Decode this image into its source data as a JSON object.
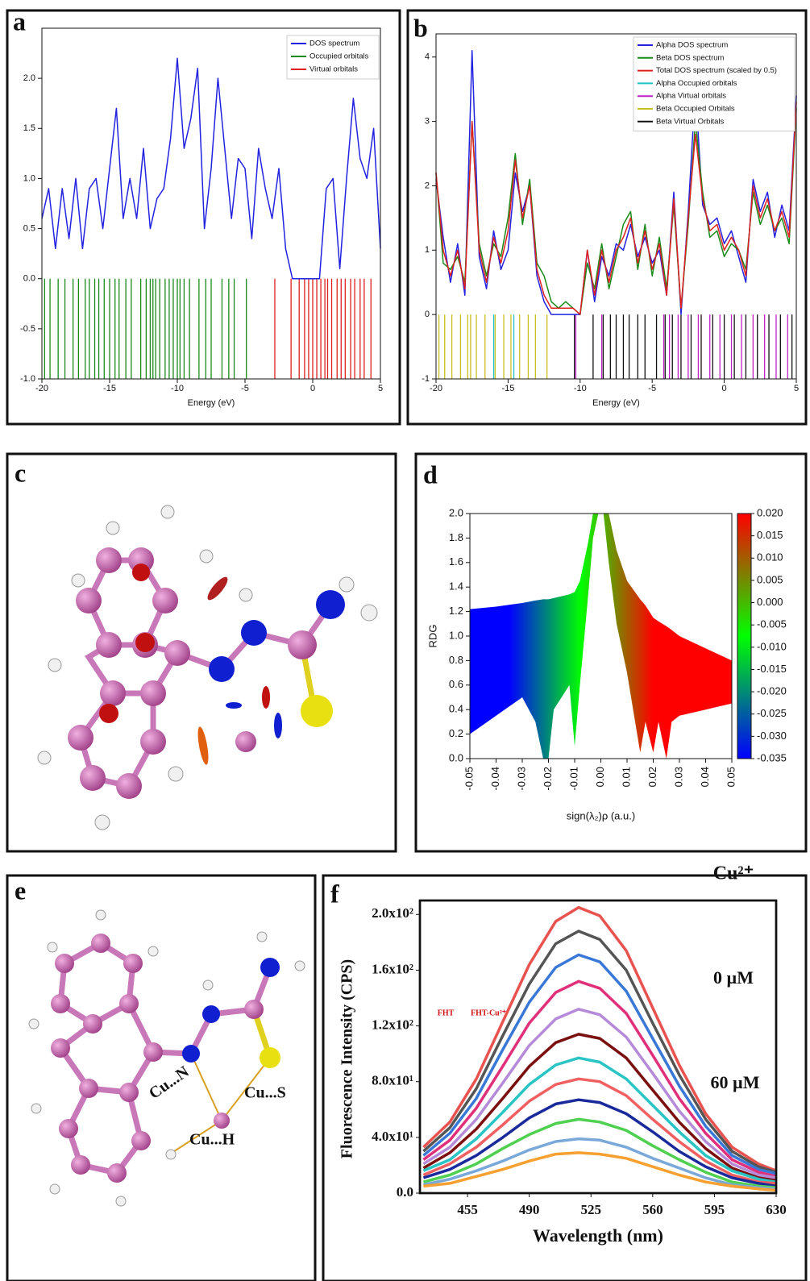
{
  "chart_data": [
    {
      "type": "line",
      "panel_label": "a",
      "xlabel": "Energy (eV)",
      "x": [
        -20,
        -19.5,
        -19,
        -18.5,
        -18,
        -17.5,
        -17,
        -16.5,
        -16,
        -15.5,
        -15,
        -14.5,
        -14,
        -13.5,
        -13,
        -12.5,
        -12,
        -11.5,
        -11,
        -10.5,
        -10,
        -9.5,
        -9,
        -8.5,
        -8,
        -7.5,
        -7,
        -6.5,
        -6,
        -5.5,
        -5,
        -4.5,
        -4,
        -3.5,
        -3,
        -2.5,
        -2,
        -1.5,
        -1,
        -0.5,
        0,
        0.5,
        1,
        1.5,
        2,
        2.5,
        3,
        3.5,
        4,
        4.5,
        5
      ],
      "xlim": [
        -20,
        5
      ],
      "xticks": [
        -20,
        -15,
        -10,
        -5,
        0,
        5
      ],
      "ylim": [
        -1,
        2.5
      ],
      "yticks": [
        {
          "value": -1,
          "label": "-1.0"
        },
        -0.5,
        {
          "value": 0,
          "label": "0.0"
        },
        0.5,
        {
          "value": 1,
          "label": "1.0"
        },
        1.5,
        {
          "value": 2,
          "label": "2.0"
        }
      ],
      "series": [
        {
          "name": "DOS spectrum",
          "color": "#2222e0",
          "values": [
            0.6,
            0.9,
            0.3,
            0.9,
            0.4,
            1.0,
            0.3,
            0.9,
            1.0,
            0.5,
            1.1,
            1.7,
            0.6,
            1.0,
            0.6,
            1.3,
            0.5,
            0.8,
            0.9,
            1.4,
            2.2,
            1.3,
            1.6,
            2.1,
            0.5,
            1.1,
            2.0,
            1.3,
            0.6,
            1.2,
            1.1,
            0.4,
            1.3,
            0.9,
            0.6,
            1.1,
            0.3,
            0.0,
            0.0,
            0.0,
            0.0,
            0.0,
            0.9,
            1.0,
            0.1,
            1.0,
            1.8,
            1.2,
            1.0,
            1.5,
            0.3
          ]
        }
      ],
      "orbitals": [
        {
          "name": "Occupied orbitals",
          "color": "#1a8a1a",
          "values": [
            -19.8,
            -19.4,
            -18.8,
            -18.3,
            -17.7,
            -17.3,
            -16.8,
            -16.5,
            -16.1,
            -15.8,
            -15.4,
            -15.0,
            -14.6,
            -14.3,
            -13.8,
            -13.4,
            -12.7,
            -12.3,
            -12.0,
            -11.8,
            -11.6,
            -11.3,
            -10.9,
            -10.6,
            -10.3,
            -10.0,
            -9.8,
            -9.5,
            -9.1,
            -8.4,
            -7.9,
            -7.5,
            -6.7,
            -6.2,
            -5.8,
            -4.9
          ]
        },
        {
          "name": "Virtual orbitals",
          "color": "#e02020",
          "values": [
            -2.8,
            -1.6,
            -1.0,
            -0.6,
            -0.3,
            0.0,
            0.3,
            0.6,
            0.9,
            1.1,
            1.4,
            1.8,
            2.1,
            2.4,
            2.8,
            3.1,
            3.5,
            3.8,
            4.3
          ]
        }
      ],
      "legend": "upper right"
    },
    {
      "type": "line",
      "panel_label": "b",
      "xlabel": "Energy (eV)",
      "x": [
        -20,
        -19.5,
        -19,
        -18.5,
        -18,
        -17.5,
        -17,
        -16.5,
        -16,
        -15.5,
        -15,
        -14.5,
        -14,
        -13.5,
        -13,
        -12.5,
        -12,
        -11.5,
        -11,
        -10.5,
        -10,
        -9.5,
        -9,
        -8.5,
        -8,
        -7.5,
        -7,
        -6.5,
        -6,
        -5.5,
        -5,
        -4.5,
        -4,
        -3.5,
        -3,
        -2.5,
        -2,
        -1.5,
        -1,
        -0.5,
        0,
        0.5,
        1,
        1.5,
        2,
        2.5,
        3,
        3.5,
        4,
        4.5,
        5
      ],
      "xlim": [
        -20,
        5
      ],
      "xticks": [
        -20,
        -15,
        -10,
        -5,
        0,
        5
      ],
      "ylim": [
        -1,
        4.36
      ],
      "yticks": [
        -1,
        0,
        1,
        2,
        3,
        4
      ],
      "series": [
        {
          "name": "Alpha DOS spectrum",
          "color": "#2222e0",
          "values": [
            2.1,
            1.2,
            0.5,
            1.1,
            0.3,
            4.1,
            0.9,
            0.4,
            1.3,
            0.7,
            1.0,
            2.2,
            1.6,
            2.0,
            0.6,
            0.2,
            0.0,
            0.0,
            0.0,
            0.0,
            0.0,
            1.0,
            0.2,
            0.9,
            0.6,
            1.1,
            1.0,
            1.4,
            0.9,
            1.2,
            0.8,
            1.0,
            0.3,
            1.9,
            0.0,
            1.6,
            3.5,
            1.7,
            1.4,
            1.5,
            1.1,
            1.3,
            0.9,
            0.5,
            2.1,
            1.6,
            1.9,
            1.2,
            1.7,
            1.3,
            3.4
          ]
        },
        {
          "name": "Beta DOS spectrum",
          "color": "#1a8a1a",
          "values": [
            2.2,
            0.8,
            0.7,
            0.9,
            0.5,
            3.0,
            1.1,
            0.6,
            1.1,
            0.9,
            1.5,
            2.5,
            1.4,
            2.1,
            0.8,
            0.6,
            0.2,
            0.1,
            0.2,
            0.1,
            0.0,
            0.8,
            0.4,
            1.1,
            0.4,
            0.9,
            1.4,
            1.6,
            0.7,
            1.4,
            0.6,
            1.2,
            0.4,
            1.7,
            0.1,
            1.4,
            3.0,
            1.9,
            1.2,
            1.3,
            0.9,
            1.1,
            1.0,
            0.7,
            1.9,
            1.4,
            1.7,
            1.3,
            1.5,
            1.1,
            3.2
          ]
        },
        {
          "name": "Total DOS spectrum (scaled by 0.5)",
          "color": "#e02020",
          "values": [
            2.2,
            1.0,
            0.6,
            1.0,
            0.4,
            3.0,
            1.0,
            0.5,
            1.2,
            0.8,
            1.3,
            2.4,
            1.5,
            2.0,
            0.7,
            0.3,
            0.1,
            0.1,
            0.1,
            0.1,
            0.0,
            1.0,
            0.3,
            1.0,
            0.5,
            1.0,
            1.2,
            1.5,
            0.8,
            1.3,
            0.7,
            1.1,
            0.3,
            1.8,
            0.1,
            1.5,
            2.8,
            1.8,
            1.3,
            1.4,
            1.0,
            1.2,
            1.0,
            0.6,
            2.0,
            1.5,
            1.8,
            1.3,
            1.6,
            1.2,
            3.3
          ]
        }
      ],
      "orbitals": [
        {
          "name": "Alpha Occupied orbitals",
          "color": "#20c0c8",
          "values": [
            -16.0,
            -14.6
          ]
        },
        {
          "name": "Alpha Virtual orbitals",
          "color": "#c020c8",
          "values": [
            -10.3,
            -8.5,
            -4.2,
            -3.8,
            -3.2,
            -2.5,
            -1.8,
            -1.0,
            -0.3,
            0.5,
            1.2,
            2.0,
            2.8,
            3.6,
            4.4
          ]
        },
        {
          "name": "Beta Occupied Orbitals",
          "color": "#c8c020",
          "values": [
            -19.8,
            -19.4,
            -18.9,
            -18.3,
            -17.8,
            -17.6,
            -17.2,
            -16.6,
            -15.9,
            -15.3,
            -14.8,
            -14.2,
            -13.6,
            -13.1,
            -12.3
          ]
        },
        {
          "name": "Beta Virtual Orbitals",
          "color": "#111111",
          "values": [
            -10.4,
            -9.1,
            -8.4,
            -7.9,
            -7.5,
            -7.0,
            -6.6,
            -6.0,
            -5.5,
            -4.7,
            -4.1,
            -3.6,
            -3.0,
            -2.3,
            -1.6,
            -0.8,
            0.0,
            0.7,
            1.5,
            2.3,
            3.1,
            3.9,
            4.7
          ]
        }
      ],
      "legend": "upper right"
    },
    {
      "type": "area",
      "panel_label": "d",
      "xlabel": "sign(λ₂)ρ (a.u.)",
      "ylabel": "RDG",
      "xlim": [
        -0.05,
        0.05
      ],
      "xticks": [
        -0.05,
        -0.04,
        -0.03,
        -0.02,
        -0.01,
        {
          "value": 0,
          "label": "0.00"
        },
        0.01,
        0.02,
        0.03,
        0.04,
        0.05
      ],
      "ylim": [
        0,
        2
      ],
      "yticks": [
        {
          "value": 0,
          "label": "0.0"
        },
        0.2,
        0.4,
        0.6,
        0.8,
        {
          "value": 1,
          "label": "1.0"
        },
        1.2,
        1.4,
        1.6,
        1.8,
        {
          "value": 2,
          "label": "2.0"
        }
      ],
      "pieces": [
        {
          "x": [
            -0.05,
            -0.04,
            -0.03,
            -0.025,
            -0.022,
            -0.02,
            -0.018,
            -0.012,
            -0.01,
            -0.008,
            -0.005,
            -0.003,
            -0.001
          ],
          "upper": [
            1.22,
            1.24,
            1.27,
            1.29,
            1.3,
            1.3,
            1.31,
            1.34,
            1.36,
            1.45,
            1.75,
            2.0,
            2.0
          ],
          "lower": [
            0.2,
            0.35,
            0.5,
            0.3,
            0.0,
            0.0,
            0.4,
            0.6,
            0.1,
            0.6,
            1.3,
            1.8,
            2.0
          ]
        },
        {
          "x": [
            0.001,
            0.003,
            0.006,
            0.01,
            0.015,
            0.017,
            0.02,
            0.022,
            0.025,
            0.027,
            0.03,
            0.04,
            0.05
          ],
          "upper": [
            2.0,
            2.0,
            1.7,
            1.45,
            1.3,
            1.25,
            1.15,
            1.12,
            1.08,
            1.05,
            1.0,
            0.9,
            0.8
          ],
          "lower": [
            2.0,
            1.6,
            1.1,
            0.7,
            0.05,
            0.3,
            0.05,
            0.3,
            0.0,
            0.3,
            0.35,
            0.4,
            0.45
          ]
        }
      ],
      "colorbar": {
        "lim": [
          -0.035,
          0.02
        ],
        "colors": [
          "#0000ff",
          "#00ff00",
          "#ff0000"
        ],
        "ticks": [
          {
            "value": 0.02,
            "label": "0.020"
          },
          0.015,
          {
            "value": 0.01,
            "label": "0.010"
          },
          0.005,
          {
            "value": 0,
            "label": "0.000"
          },
          -0.005,
          {
            "value": -0.01,
            "label": "-0.010"
          },
          -0.015,
          {
            "value": -0.02,
            "label": "-0.020"
          },
          -0.025,
          {
            "value": -0.03,
            "label": "-0.030"
          },
          -0.035
        ]
      }
    },
    {
      "type": "line",
      "panel_label": "f",
      "xlabel": "Wavelength (nm)",
      "ylabel": "Fluorescence Intensity (CPS)",
      "x": [
        430,
        445,
        460,
        475,
        490,
        505,
        518,
        530,
        545,
        560,
        575,
        590,
        605,
        620,
        630
      ],
      "xlim": [
        428,
        630
      ],
      "xticks": [
        455,
        490,
        525,
        560,
        595,
        630
      ],
      "ylim": [
        0,
        210
      ],
      "yticks": [
        {
          "value": 0,
          "label": "0.0"
        },
        {
          "value": 40,
          "label": "4.0x10¹"
        },
        {
          "value": 80,
          "label": "8.0x10¹"
        },
        {
          "value": 120,
          "label": "1.2x10²"
        },
        {
          "value": 160,
          "label": "1.6x10²"
        },
        {
          "value": 200,
          "label": "2.0x10²"
        }
      ],
      "series": [
        {
          "color": "#e8534f",
          "values": [
            33,
            51,
            82,
            123,
            164,
            195,
            205,
            199,
            174,
            133,
            92,
            57,
            33,
            21,
            16
          ]
        },
        {
          "color": "#555555",
          "values": [
            30,
            47,
            75,
            113,
            150,
            179,
            188,
            182,
            160,
            122,
            85,
            53,
            30,
            19,
            15
          ]
        },
        {
          "color": "#3a78d8",
          "values": [
            27,
            43,
            68,
            103,
            137,
            162,
            171,
            166,
            145,
            111,
            77,
            48,
            27,
            17,
            14
          ]
        },
        {
          "color": "#e0307a",
          "values": [
            24,
            38,
            61,
            91,
            122,
            144,
            152,
            147,
            129,
            99,
            68,
            43,
            24,
            15,
            12
          ]
        },
        {
          "color": "#b58ad8",
          "values": [
            21,
            33,
            53,
            79,
            106,
            125,
            132,
            128,
            112,
            86,
            59,
            37,
            21,
            13,
            11
          ]
        },
        {
          "color": "#7a1010",
          "values": [
            18,
            29,
            46,
            68,
            91,
            108,
            114,
            111,
            97,
            74,
            51,
            32,
            18,
            11,
            9
          ]
        },
        {
          "color": "#2bc4c4",
          "values": [
            16,
            24,
            39,
            58,
            78,
            92,
            97,
            94,
            82,
            63,
            44,
            27,
            16,
            10,
            8
          ]
        },
        {
          "color": "#f06060",
          "values": [
            13,
            21,
            33,
            49,
            66,
            78,
            82,
            80,
            70,
            53,
            37,
            23,
            13,
            8,
            7
          ]
        },
        {
          "color": "#1a2a9a",
          "values": [
            11,
            17,
            27,
            40,
            54,
            64,
            67,
            65,
            57,
            44,
            30,
            19,
            11,
            7,
            5
          ]
        },
        {
          "color": "#50d050",
          "values": [
            8,
            13,
            21,
            32,
            42,
            50,
            53,
            51,
            45,
            34,
            24,
            15,
            8,
            5,
            4
          ]
        },
        {
          "color": "#7aa8d8",
          "values": [
            6,
            10,
            16,
            23,
            31,
            37,
            39,
            38,
            33,
            25,
            18,
            11,
            6,
            4,
            3
          ]
        },
        {
          "color": "#f5a030",
          "values": [
            5,
            7,
            12,
            17,
            23,
            28,
            29,
            28,
            25,
            19,
            13,
            8,
            5,
            3,
            2
          ]
        }
      ],
      "annotations": [
        "Cu²⁺",
        "0 µM",
        "60 µM"
      ],
      "inset_labels": [
        "FHT",
        "FHT-Cu²⁺"
      ]
    }
  ],
  "figures": [
    {
      "panel_label": "c"
    },
    {
      "panel_label": "e",
      "labels": [
        "Cu...N",
        "Cu...S",
        "Cu...H"
      ]
    }
  ]
}
